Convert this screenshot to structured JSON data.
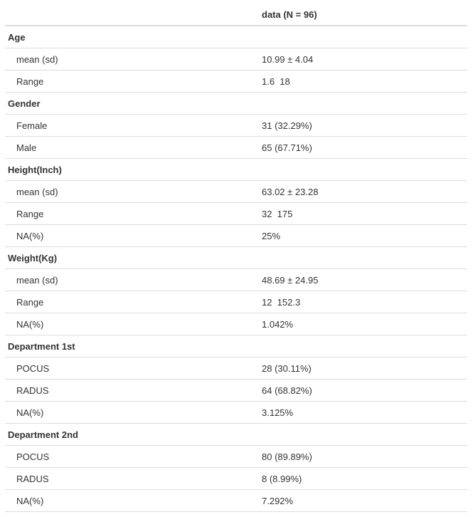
{
  "table": {
    "header": {
      "label": "",
      "value": "data (N = 96)"
    },
    "rows": [
      {
        "type": "group",
        "label": "Age",
        "value": ""
      },
      {
        "type": "sub",
        "label": "mean (sd)",
        "value": "10.99 ± 4.04"
      },
      {
        "type": "sub",
        "label": "Range",
        "value": "1.6  18"
      },
      {
        "type": "group",
        "label": "Gender",
        "value": ""
      },
      {
        "type": "sub",
        "label": "Female",
        "value": "31 (32.29%)"
      },
      {
        "type": "sub",
        "label": "Male",
        "value": "65 (67.71%)"
      },
      {
        "type": "group",
        "label": "Height(Inch)",
        "value": ""
      },
      {
        "type": "sub",
        "label": "mean (sd)",
        "value": "63.02 ± 23.28"
      },
      {
        "type": "sub",
        "label": "Range",
        "value": "32  175"
      },
      {
        "type": "sub",
        "label": "NA(%)",
        "value": "25%"
      },
      {
        "type": "group",
        "label": "Weight(Kg)",
        "value": ""
      },
      {
        "type": "sub",
        "label": "mean (sd)",
        "value": "48.69 ± 24.95"
      },
      {
        "type": "sub",
        "label": "Range",
        "value": "12  152.3"
      },
      {
        "type": "sub",
        "label": "NA(%)",
        "value": "1.042%"
      },
      {
        "type": "group",
        "label": "Department 1st",
        "value": ""
      },
      {
        "type": "sub",
        "label": "POCUS",
        "value": "28 (30.11%)"
      },
      {
        "type": "sub",
        "label": "RADUS",
        "value": "64 (68.82%)"
      },
      {
        "type": "sub",
        "label": "NA(%)",
        "value": "3.125%"
      },
      {
        "type": "group",
        "label": "Department 2nd",
        "value": ""
      },
      {
        "type": "sub",
        "label": "POCUS",
        "value": "80 (89.89%)"
      },
      {
        "type": "sub",
        "label": "RADUS",
        "value": "8 (8.99%)"
      },
      {
        "type": "sub",
        "label": "NA(%)",
        "value": "7.292%"
      }
    ]
  }
}
